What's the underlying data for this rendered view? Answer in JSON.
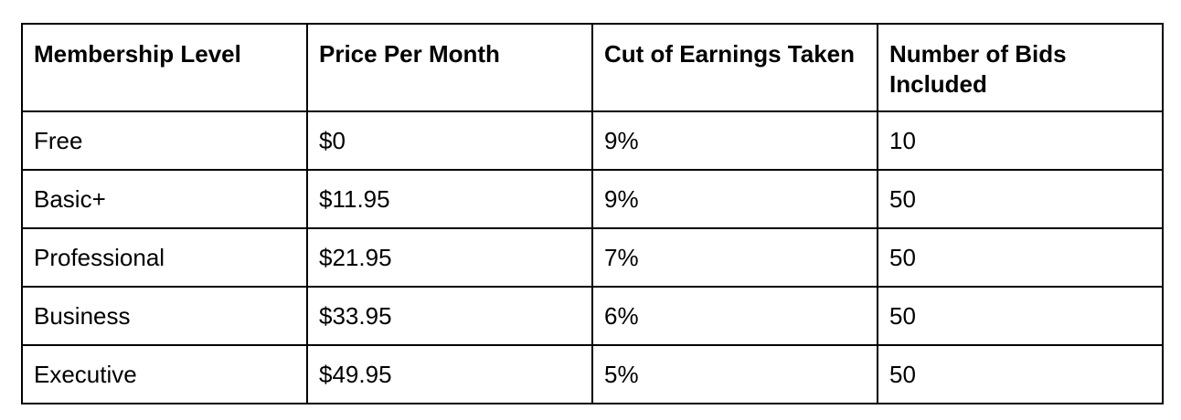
{
  "table": {
    "headers": [
      "Membership Level",
      "Price Per Month",
      "Cut of Earnings Taken",
      "Number of Bids Included"
    ],
    "rows": [
      [
        "Free",
        "$0",
        "9%",
        "10"
      ],
      [
        "Basic+",
        "$11.95",
        "9%",
        "50"
      ],
      [
        "Professional",
        "$21.95",
        "7%",
        "50"
      ],
      [
        "Business",
        "$33.95",
        "6%",
        "50"
      ],
      [
        "Executive",
        "$49.95",
        "5%",
        "50"
      ]
    ]
  }
}
